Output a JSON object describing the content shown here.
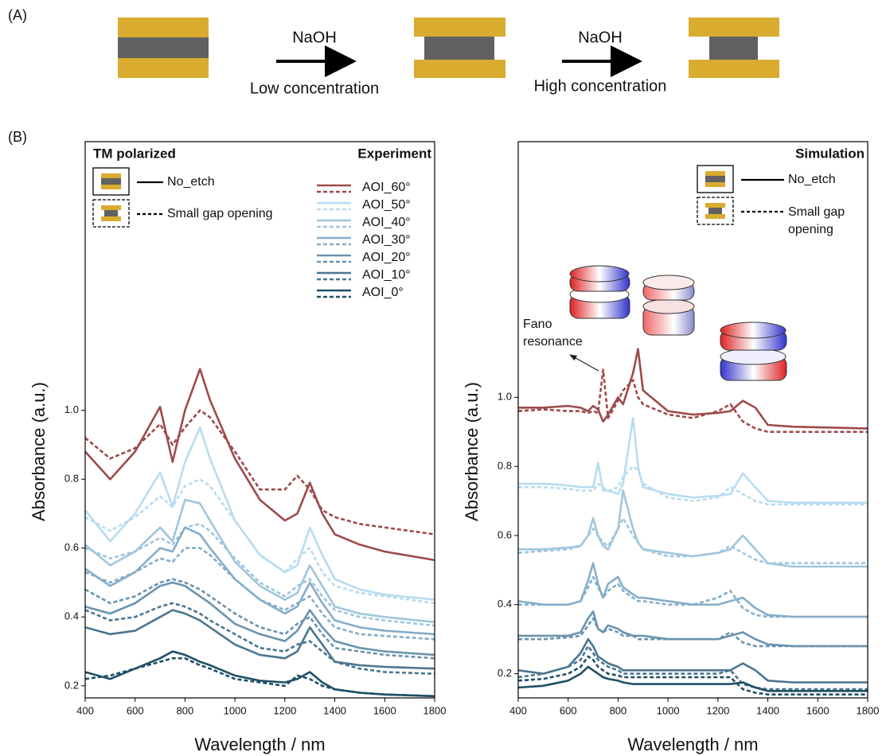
{
  "panel_a": {
    "label": "(A)",
    "steps": [
      {
        "reagent": "NaOH",
        "condition": "Low concentration"
      },
      {
        "reagent": "NaOH",
        "condition": "High concentration"
      }
    ]
  },
  "panel_b_label": "(B)",
  "chart_data": [
    {
      "type": "line",
      "title": "TM polarized",
      "subtitle": "Experiment",
      "xlabel": "Wavelength / nm",
      "ylabel": "Absorbance (a.u.)",
      "style_legend": [
        "No_etch",
        "Small gap opening"
      ],
      "xlim": [
        400,
        1800
      ],
      "xticks": [
        400,
        600,
        800,
        1000,
        1200,
        1400,
        1600,
        1800
      ],
      "ylim": [
        0.165,
        1.78
      ],
      "yticks": [
        0.2,
        0.4,
        0.6,
        0.8,
        {
          "value": 1,
          "label": "1.0"
        }
      ],
      "x": [
        400,
        500,
        600,
        700,
        750,
        800,
        860,
        900,
        1000,
        1100,
        1200,
        1250,
        1300,
        1350,
        1400,
        1500,
        1600,
        1800
      ],
      "series": [
        {
          "name": "AOI_60°",
          "color": "#9e4a4a",
          "dashed": false,
          "values": [
            0.88,
            0.8,
            0.88,
            1.01,
            0.85,
            1.0,
            1.12,
            1.03,
            0.86,
            0.74,
            0.68,
            0.7,
            0.79,
            0.7,
            0.64,
            0.61,
            0.59,
            0.565
          ]
        },
        {
          "name": "AOI_60°",
          "color": "#9e4a4a",
          "dashed": true,
          "values": [
            0.92,
            0.86,
            0.89,
            0.96,
            0.9,
            0.95,
            1.0,
            0.98,
            0.88,
            0.77,
            0.77,
            0.81,
            0.77,
            0.71,
            0.69,
            0.67,
            0.66,
            0.64
          ]
        },
        {
          "name": "AOI_50°",
          "color": "#b8dcf0",
          "dashed": false,
          "values": [
            0.71,
            0.62,
            0.7,
            0.82,
            0.72,
            0.85,
            0.95,
            0.86,
            0.68,
            0.58,
            0.53,
            0.55,
            0.66,
            0.58,
            0.51,
            0.48,
            0.465,
            0.45
          ]
        },
        {
          "name": "AOI_50°",
          "color": "#b8dcf0",
          "dashed": true,
          "values": [
            0.69,
            0.65,
            0.69,
            0.75,
            0.72,
            0.78,
            0.8,
            0.78,
            0.68,
            0.58,
            0.53,
            0.57,
            0.6,
            0.53,
            0.49,
            0.47,
            0.46,
            0.44
          ]
        },
        {
          "name": "AOI_40°",
          "color": "#9fc6dd",
          "dashed": false,
          "values": [
            0.61,
            0.55,
            0.59,
            0.66,
            0.62,
            0.74,
            0.73,
            0.68,
            0.56,
            0.49,
            0.45,
            0.47,
            0.55,
            0.49,
            0.43,
            0.41,
            0.4,
            0.385
          ]
        },
        {
          "name": "AOI_40°",
          "color": "#9fc6dd",
          "dashed": true,
          "values": [
            0.6,
            0.57,
            0.59,
            0.63,
            0.61,
            0.66,
            0.67,
            0.65,
            0.57,
            0.5,
            0.46,
            0.49,
            0.51,
            0.46,
            0.42,
            0.4,
            0.39,
            0.375
          ]
        },
        {
          "name": "AOI_30°",
          "color": "#86adc8",
          "dashed": false,
          "values": [
            0.54,
            0.49,
            0.53,
            0.6,
            0.59,
            0.66,
            0.64,
            0.6,
            0.51,
            0.45,
            0.41,
            0.43,
            0.5,
            0.44,
            0.39,
            0.37,
            0.36,
            0.35
          ]
        },
        {
          "name": "AOI_30°",
          "color": "#86adc8",
          "dashed": true,
          "values": [
            0.53,
            0.5,
            0.53,
            0.57,
            0.56,
            0.6,
            0.6,
            0.58,
            0.51,
            0.45,
            0.42,
            0.44,
            0.46,
            0.41,
            0.37,
            0.35,
            0.345,
            0.335
          ]
        },
        {
          "name": "AOI_20°",
          "color": "#6a93ae",
          "dashed": false,
          "values": [
            0.43,
            0.41,
            0.44,
            0.49,
            0.5,
            0.49,
            0.46,
            0.44,
            0.38,
            0.35,
            0.33,
            0.36,
            0.42,
            0.37,
            0.33,
            0.31,
            0.3,
            0.29
          ]
        },
        {
          "name": "AOI_20°",
          "color": "#6a93ae",
          "dashed": true,
          "values": [
            0.48,
            0.44,
            0.46,
            0.5,
            0.51,
            0.5,
            0.48,
            0.46,
            0.41,
            0.37,
            0.35,
            0.38,
            0.4,
            0.35,
            0.31,
            0.3,
            0.29,
            0.28
          ]
        },
        {
          "name": "AOI_10°",
          "color": "#4b7590",
          "dashed": false,
          "values": [
            0.37,
            0.35,
            0.36,
            0.4,
            0.42,
            0.41,
            0.39,
            0.37,
            0.32,
            0.29,
            0.28,
            0.3,
            0.37,
            0.32,
            0.27,
            0.26,
            0.255,
            0.25
          ]
        },
        {
          "name": "AOI_10°",
          "color": "#4b7590",
          "dashed": true,
          "values": [
            0.42,
            0.39,
            0.4,
            0.43,
            0.44,
            0.43,
            0.41,
            0.39,
            0.35,
            0.31,
            0.3,
            0.32,
            0.33,
            0.3,
            0.27,
            0.25,
            0.24,
            0.235
          ]
        },
        {
          "name": "AOI_0°",
          "color": "#1f4f66",
          "dashed": false,
          "values": [
            0.24,
            0.22,
            0.25,
            0.28,
            0.3,
            0.29,
            0.27,
            0.26,
            0.23,
            0.215,
            0.21,
            0.22,
            0.24,
            0.21,
            0.19,
            0.18,
            0.175,
            0.17
          ]
        },
        {
          "name": "AOI_0°",
          "color": "#1f4f66",
          "dashed": true,
          "values": [
            0.22,
            0.23,
            0.25,
            0.27,
            0.28,
            0.28,
            0.26,
            0.25,
            0.22,
            0.21,
            0.2,
            0.23,
            0.22,
            0.2,
            0.19,
            0.18,
            0.175,
            0.17
          ]
        }
      ]
    },
    {
      "type": "line",
      "subtitle": "Simulation",
      "xlabel": "Wavelength / nm",
      "ylabel": "Absorbance (a.u.)",
      "style_legend": [
        "No_etch",
        "Small gap opening"
      ],
      "annotation": "Fano resonance",
      "xlim": [
        400,
        1800
      ],
      "xticks": [
        400,
        600,
        800,
        1000,
        1200,
        1400,
        1600,
        1800
      ],
      "ylim": [
        0.13,
        1.74
      ],
      "yticks": [
        0.2,
        0.4,
        0.6,
        0.8,
        {
          "value": 1,
          "label": "1.0"
        }
      ],
      "x": [
        400,
        500,
        600,
        650,
        680,
        700,
        720,
        740,
        760,
        800,
        820,
        860,
        880,
        900,
        1000,
        1100,
        1200,
        1250,
        1300,
        1350,
        1400,
        1500,
        1800
      ],
      "series": [
        {
          "color": "#9e4a4a",
          "dashed": false,
          "values": [
            0.97,
            0.97,
            0.975,
            0.97,
            0.96,
            0.975,
            0.965,
            0.93,
            0.95,
            1.0,
            0.98,
            1.07,
            1.14,
            1.02,
            0.96,
            0.95,
            0.955,
            0.96,
            0.99,
            0.97,
            0.92,
            0.915,
            0.91
          ]
        },
        {
          "color": "#9e4a4a",
          "dashed": true,
          "values": [
            0.96,
            0.965,
            0.96,
            0.96,
            0.955,
            0.96,
            0.955,
            1.08,
            0.94,
            0.99,
            1.02,
            1.05,
            1.0,
            0.98,
            0.95,
            0.94,
            0.96,
            0.98,
            0.93,
            0.91,
            0.9,
            0.9,
            0.9
          ]
        },
        {
          "color": "#b8dcf0",
          "dashed": false,
          "values": [
            0.75,
            0.75,
            0.745,
            0.74,
            0.74,
            0.74,
            0.81,
            0.73,
            0.73,
            0.72,
            0.75,
            0.94,
            0.8,
            0.74,
            0.72,
            0.71,
            0.715,
            0.72,
            0.78,
            0.74,
            0.7,
            0.695,
            0.695
          ]
        },
        {
          "color": "#b8dcf0",
          "dashed": true,
          "values": [
            0.74,
            0.74,
            0.735,
            0.73,
            0.73,
            0.73,
            0.75,
            0.74,
            0.73,
            0.74,
            0.77,
            0.8,
            0.79,
            0.75,
            0.71,
            0.7,
            0.71,
            0.74,
            0.72,
            0.7,
            0.69,
            0.69,
            0.69
          ]
        },
        {
          "color": "#9fc6dd",
          "dashed": false,
          "values": [
            0.56,
            0.56,
            0.565,
            0.57,
            0.6,
            0.65,
            0.6,
            0.57,
            0.56,
            0.62,
            0.73,
            0.62,
            0.58,
            0.56,
            0.55,
            0.54,
            0.55,
            0.56,
            0.6,
            0.56,
            0.52,
            0.51,
            0.51
          ]
        },
        {
          "color": "#9fc6dd",
          "dashed": true,
          "values": [
            0.55,
            0.555,
            0.56,
            0.57,
            0.6,
            0.62,
            0.6,
            0.58,
            0.57,
            0.62,
            0.65,
            0.6,
            0.58,
            0.56,
            0.54,
            0.54,
            0.55,
            0.57,
            0.55,
            0.53,
            0.52,
            0.52,
            0.52
          ]
        },
        {
          "color": "#86adc8",
          "dashed": false,
          "values": [
            0.41,
            0.4,
            0.4,
            0.41,
            0.47,
            0.52,
            0.46,
            0.42,
            0.46,
            0.48,
            0.45,
            0.43,
            0.42,
            0.42,
            0.41,
            0.4,
            0.4,
            0.41,
            0.42,
            0.39,
            0.37,
            0.365,
            0.365
          ]
        },
        {
          "color": "#86adc8",
          "dashed": true,
          "values": [
            0.4,
            0.4,
            0.4,
            0.41,
            0.45,
            0.48,
            0.45,
            0.42,
            0.44,
            0.46,
            0.44,
            0.42,
            0.41,
            0.41,
            0.4,
            0.4,
            0.42,
            0.44,
            0.39,
            0.37,
            0.365,
            0.365,
            0.365
          ]
        },
        {
          "color": "#6a93ae",
          "dashed": false,
          "values": [
            0.31,
            0.31,
            0.31,
            0.32,
            0.36,
            0.38,
            0.33,
            0.32,
            0.34,
            0.33,
            0.32,
            0.31,
            0.31,
            0.31,
            0.3,
            0.3,
            0.3,
            0.31,
            0.32,
            0.3,
            0.285,
            0.28,
            0.28
          ]
        },
        {
          "color": "#6a93ae",
          "dashed": true,
          "values": [
            0.3,
            0.3,
            0.305,
            0.31,
            0.34,
            0.36,
            0.33,
            0.32,
            0.33,
            0.32,
            0.31,
            0.31,
            0.3,
            0.3,
            0.3,
            0.3,
            0.3,
            0.32,
            0.29,
            0.28,
            0.28,
            0.28,
            0.28
          ]
        },
        {
          "color": "#4b7590",
          "dashed": false,
          "values": [
            0.21,
            0.2,
            0.22,
            0.26,
            0.3,
            0.28,
            0.25,
            0.24,
            0.23,
            0.22,
            0.21,
            0.21,
            0.21,
            0.21,
            0.21,
            0.21,
            0.21,
            0.21,
            0.23,
            0.21,
            0.18,
            0.175,
            0.175
          ]
        },
        {
          "color": "#4b7590",
          "dashed": true,
          "values": [
            0.19,
            0.2,
            0.22,
            0.24,
            0.28,
            0.26,
            0.24,
            0.23,
            0.22,
            0.21,
            0.2,
            0.2,
            0.2,
            0.2,
            0.2,
            0.2,
            0.2,
            0.21,
            0.17,
            0.16,
            0.155,
            0.155,
            0.155
          ]
        },
        {
          "color": "#1f4f66",
          "dashed": false,
          "values": [
            0.16,
            0.165,
            0.18,
            0.2,
            0.22,
            0.21,
            0.2,
            0.19,
            0.185,
            0.18,
            0.175,
            0.17,
            0.17,
            0.17,
            0.17,
            0.17,
            0.17,
            0.17,
            0.175,
            0.16,
            0.15,
            0.15,
            0.15
          ]
        },
        {
          "color": "#1f4f66",
          "dashed": true,
          "values": [
            0.18,
            0.185,
            0.2,
            0.22,
            0.25,
            0.24,
            0.22,
            0.21,
            0.2,
            0.195,
            0.19,
            0.19,
            0.19,
            0.19,
            0.19,
            0.19,
            0.19,
            0.19,
            0.155,
            0.145,
            0.14,
            0.14,
            0.14
          ]
        }
      ]
    }
  ]
}
